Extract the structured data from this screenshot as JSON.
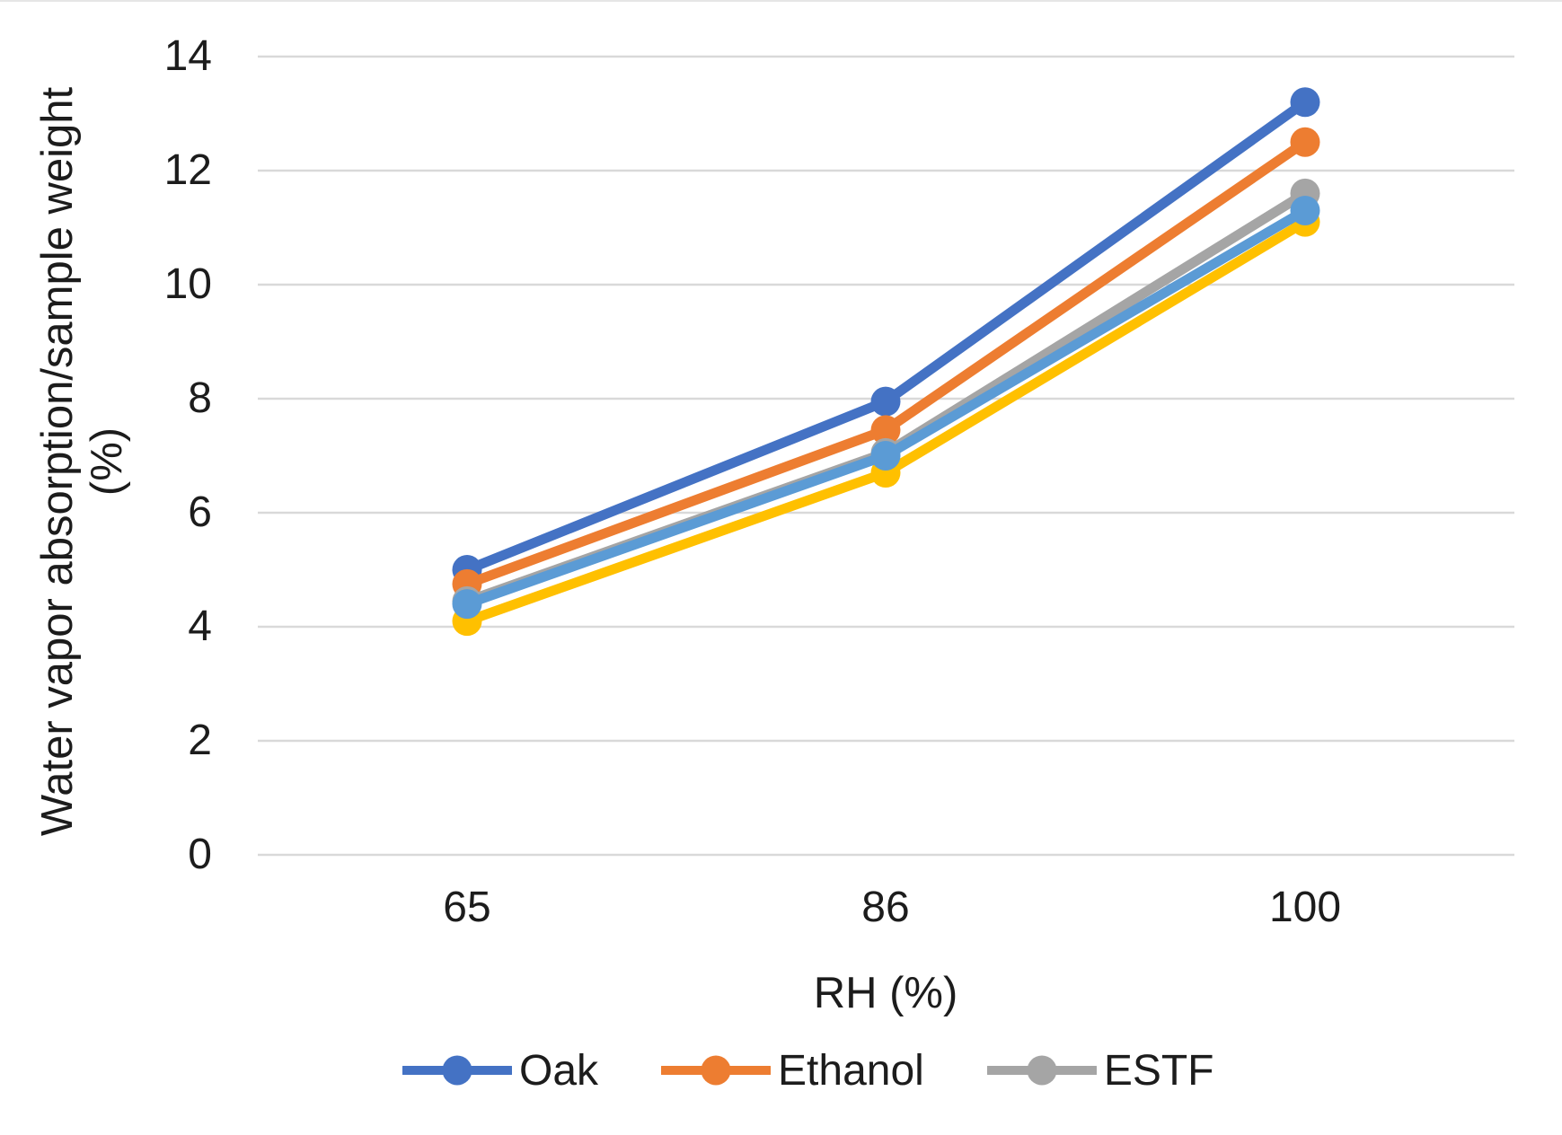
{
  "chart_data": {
    "type": "line",
    "categories": [
      "65",
      "86",
      "100"
    ],
    "xlabel": "RH (%)",
    "ylabel": "Water vapor absorption/sample weight",
    "ylabel_unit": "(%)",
    "ylim": [
      0,
      14
    ],
    "yticks": [
      "0",
      "2",
      "4",
      "6",
      "8",
      "10",
      "12",
      "14"
    ],
    "grid": true,
    "grid_color": "#D9D9D9",
    "legend_position": "bottom",
    "series": [
      {
        "name": "Oak",
        "color": "#4472C4",
        "values": [
          5.0,
          7.95,
          13.2
        ],
        "legend": true
      },
      {
        "name": "Ethanol",
        "color": "#ED7D31",
        "values": [
          4.75,
          7.45,
          12.5
        ],
        "legend": true
      },
      {
        "name": "ESTF",
        "color": "#A5A5A5",
        "values": [
          4.45,
          7.05,
          11.6
        ],
        "legend": true
      },
      {
        "name": "",
        "color": "#FFC000",
        "values": [
          4.1,
          6.7,
          11.1
        ],
        "legend": false
      },
      {
        "name": "",
        "color": "#5B9BD5",
        "values": [
          4.4,
          7.0,
          11.3
        ],
        "legend": false
      }
    ]
  }
}
